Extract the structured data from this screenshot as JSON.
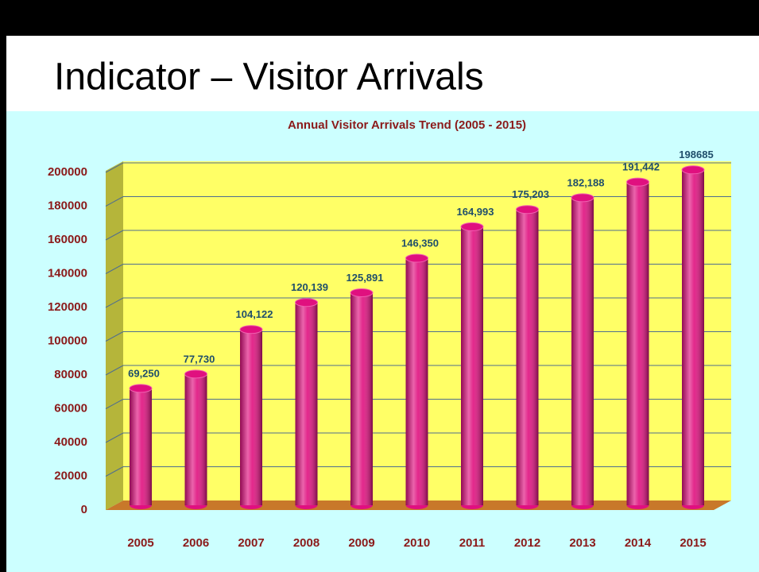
{
  "slide": {
    "title": "Indicator – Visitor Arrivals"
  },
  "chart_data": {
    "type": "bar",
    "title": "Annual Visitor Arrivals Trend (2005 - 2015)",
    "categories": [
      "2005",
      "2006",
      "2007",
      "2008",
      "2009",
      "2010",
      "2011",
      "2012",
      "2013",
      "2014",
      "2015"
    ],
    "values": [
      69250,
      77730,
      104122,
      120139,
      125891,
      146350,
      164993,
      175203,
      182188,
      191442,
      198685
    ],
    "value_labels": [
      "69,250",
      "77,730",
      "104,122",
      "120,139",
      "125,891",
      "146,350",
      "164,993",
      "175,203",
      "182,188",
      "191,442",
      "198685"
    ],
    "color": "#e0107f",
    "ylim": [
      0,
      200000
    ],
    "yticks": [
      0,
      20000,
      40000,
      60000,
      80000,
      100000,
      120000,
      140000,
      160000,
      180000,
      200000
    ],
    "grid": true
  }
}
